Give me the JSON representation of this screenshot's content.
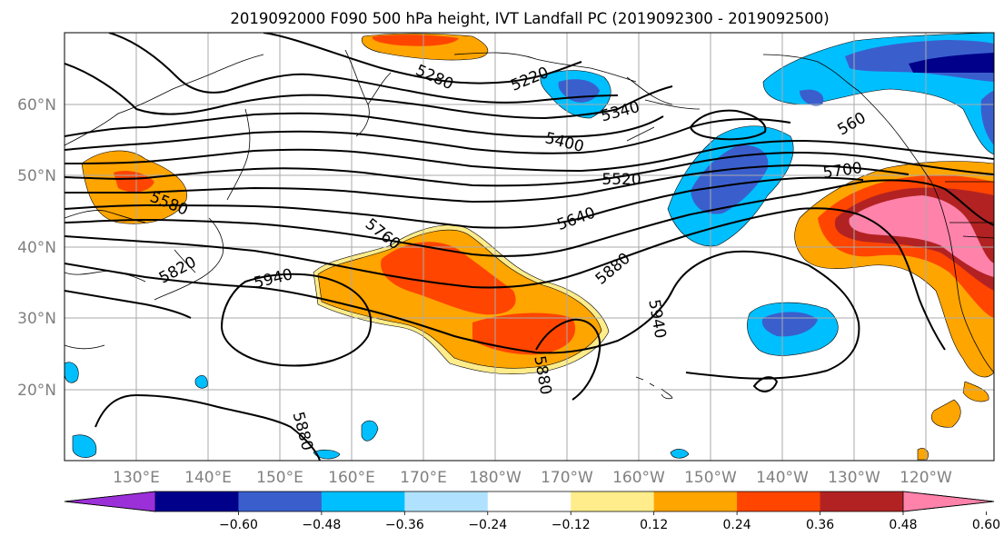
{
  "title": "2019092000 F090 500 hPa height, IVT Landfall PC (2019092300 - 2019092500)",
  "lon_ticks": [
    "130°E",
    "140°E",
    "150°E",
    "160°E",
    "170°E",
    "180°W",
    "170°W",
    "160°W",
    "150°W",
    "140°W",
    "130°W",
    "120°W"
  ],
  "lat_ticks": [
    "60°N",
    "50°N",
    "40°N",
    "30°N",
    "20°N"
  ],
  "colorbar": {
    "ticks": [
      "−0.60",
      "−0.48",
      "−0.36",
      "−0.24",
      "−0.12",
      "0.12",
      "0.24",
      "0.36",
      "0.48",
      "0.60"
    ],
    "colors": [
      "#9b30d9",
      "#00008b",
      "#3a5fcd",
      "#00bfff",
      "#b0e2ff",
      "#ffffff",
      "#ffec8b",
      "#ffa500",
      "#ff4500",
      "#b22222",
      "#ff82ab"
    ]
  },
  "contour_labels": [
    {
      "text": "5280"
    },
    {
      "text": "5220"
    },
    {
      "text": "5340"
    },
    {
      "text": "5400"
    },
    {
      "text": "5520"
    },
    {
      "text": "5640"
    },
    {
      "text": "5700"
    },
    {
      "text": "560"
    },
    {
      "text": "5580"
    },
    {
      "text": "5760"
    },
    {
      "text": "5820"
    },
    {
      "text": "5940"
    },
    {
      "text": "5880"
    },
    {
      "text": "5940"
    },
    {
      "text": "5880"
    },
    {
      "text": "5880"
    }
  ],
  "colors": {
    "contour": "#000000",
    "grid": "#aaaaaa",
    "tick_text": "#808080",
    "coast": "#000000"
  }
}
